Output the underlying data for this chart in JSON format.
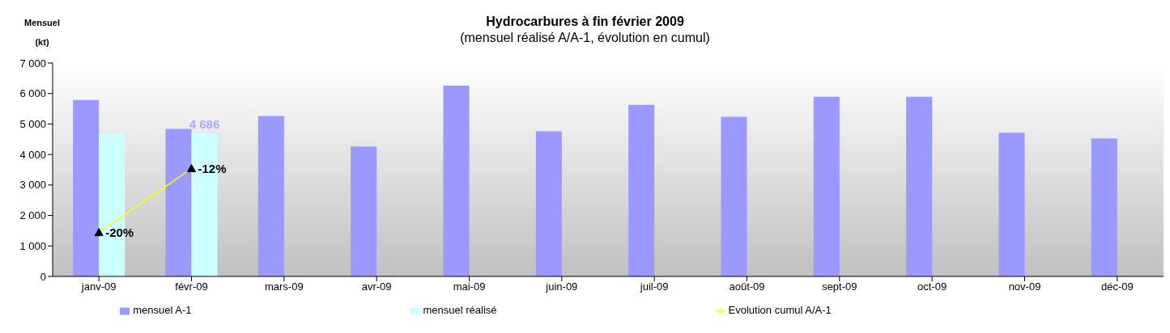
{
  "chart_data": {
    "type": "bar",
    "title": "Hydrocarbures à fin février 2009",
    "subtitle": "(mensuel réalisé A/A-1, évolution en cumul)",
    "ylabel": "Mensuel (kt)",
    "categories": [
      "janv-09",
      "févr-09",
      "mars-09",
      "avr-09",
      "mai-09",
      "juin-09",
      "juil-09",
      "août-09",
      "sept-09",
      "oct-09",
      "nov-09",
      "déc-09"
    ],
    "series": [
      {
        "name": "mensuel A-1",
        "color": "#9999ff",
        "values": [
          5790,
          4840,
          5260,
          4260,
          6260,
          4760,
          5630,
          5240,
          5890,
          5890,
          4710,
          4530
        ]
      },
      {
        "name": "mensuel réalisé",
        "color": "#ccffff",
        "values": [
          4680,
          4686,
          null,
          null,
          null,
          null,
          null,
          null,
          null,
          null,
          null,
          null
        ],
        "value_labels": [
          null,
          "4 686",
          null,
          null,
          null,
          null,
          null,
          null,
          null,
          null,
          null,
          null
        ]
      },
      {
        "name": "Evolution cumul A/A-1",
        "type": "line",
        "axis": "y2",
        "color": "#ffff00",
        "marker": "triangle",
        "values": [
          -20,
          -12,
          null,
          null,
          null,
          null,
          null,
          null,
          null,
          null,
          null,
          null
        ],
        "value_labels": [
          "-20%",
          "-12%",
          null,
          null,
          null,
          null,
          null,
          null,
          null,
          null,
          null,
          null
        ]
      }
    ],
    "ylim": [
      0,
      7000
    ],
    "yticks": [
      0,
      {
        "value": 1000,
        "label": "1 000"
      },
      {
        "value": 2000,
        "label": "2 000"
      },
      {
        "value": 3000,
        "label": "3 000"
      },
      {
        "value": 4000,
        "label": "4 000"
      },
      {
        "value": 5000,
        "label": "5 000"
      },
      {
        "value": 6000,
        "label": "6 000"
      },
      {
        "value": 7000,
        "label": "7 000"
      }
    ],
    "y2lim": [
      -25.5,
      1.2
    ],
    "grid": false,
    "legend": "bottom"
  }
}
